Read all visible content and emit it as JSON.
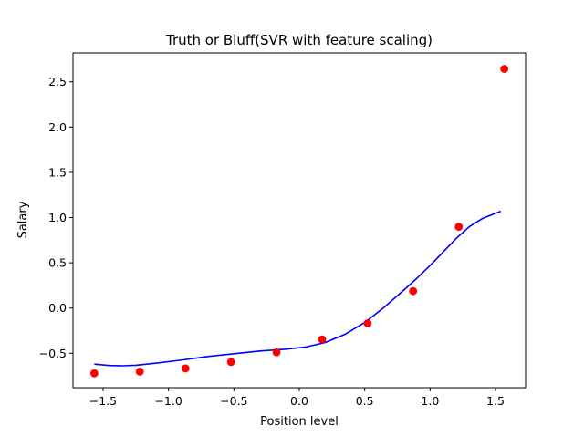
{
  "chart_data": {
    "type": "scatter",
    "title": "Truth or Bluff(SVR with feature scaling)",
    "xlabel": "Position level",
    "ylabel": "Salary",
    "xlim": [
      -1.73,
      1.73
    ],
    "ylim": [
      -0.88,
      2.82
    ],
    "xticks": [
      -1.5,
      -1.0,
      -0.5,
      0.0,
      0.5,
      1.0,
      1.5
    ],
    "xtick_labels": [
      "−1.5",
      "−1.0",
      "−0.5",
      "0.0",
      "0.5",
      "1.0",
      "1.5"
    ],
    "yticks": [
      -0.5,
      0.0,
      0.5,
      1.0,
      1.5,
      2.0,
      2.5
    ],
    "ytick_labels": [
      "−0.5",
      "0.0",
      "0.5",
      "1.0",
      "1.5",
      "2.0",
      "2.5"
    ],
    "grid": false,
    "series": [
      {
        "kind": "scatter",
        "color": "#ff0000",
        "x": [
          -1.567,
          -1.219,
          -0.87,
          -0.522,
          -0.174,
          0.174,
          0.522,
          0.87,
          1.219,
          1.567
        ],
        "y": [
          -0.721,
          -0.703,
          -0.667,
          -0.596,
          -0.489,
          -0.347,
          -0.169,
          0.187,
          0.898,
          2.643
        ]
      },
      {
        "kind": "line",
        "color": "#0000ff",
        "x": [
          -1.567,
          -1.45,
          -1.35,
          -1.25,
          -1.1,
          -0.9,
          -0.7,
          -0.5,
          -0.3,
          -0.1,
          0.05,
          0.2,
          0.35,
          0.5,
          0.65,
          0.8,
          0.9,
          1.0,
          1.1,
          1.2,
          1.3,
          1.4,
          1.54
        ],
        "y": [
          -0.62,
          -0.635,
          -0.638,
          -0.632,
          -0.61,
          -0.575,
          -0.535,
          -0.505,
          -0.475,
          -0.455,
          -0.43,
          -0.38,
          -0.29,
          -0.16,
          0.01,
          0.2,
          0.33,
          0.47,
          0.62,
          0.77,
          0.9,
          0.99,
          1.07
        ]
      }
    ]
  }
}
